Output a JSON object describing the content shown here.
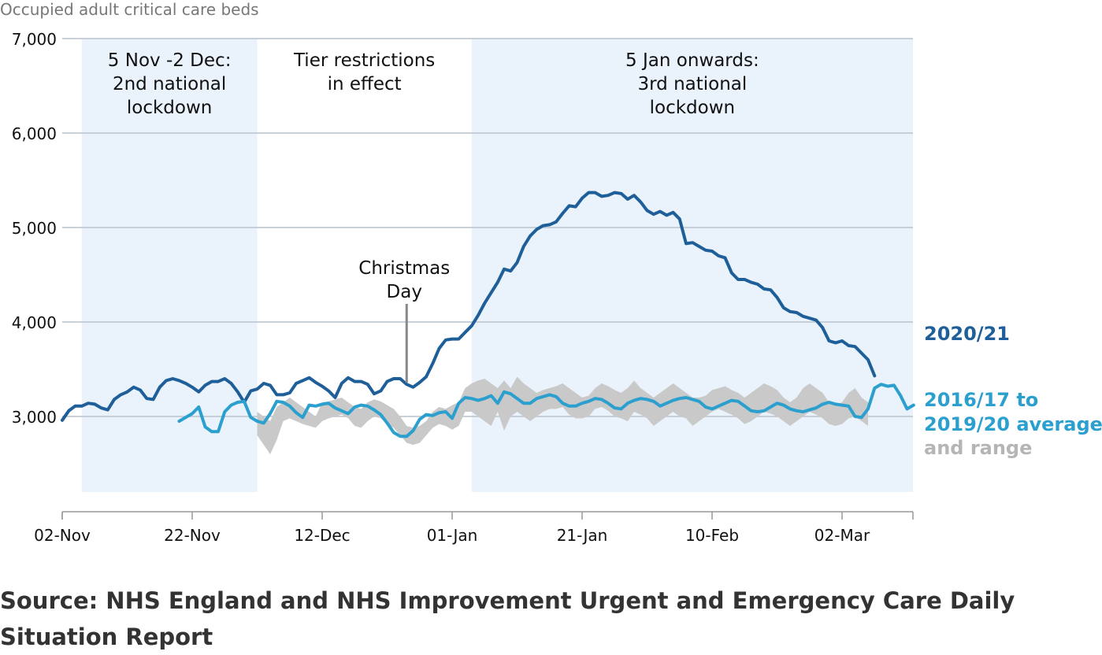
{
  "chart_data": {
    "type": "line",
    "ylabel": "Occupied adult critical care beds",
    "ylim": [
      2200,
      7000
    ],
    "y_ticks": [
      "3,000",
      "4,000",
      "5,000",
      "6,000",
      "7,000"
    ],
    "y_tick_values": [
      3000,
      4000,
      5000,
      6000,
      7000
    ],
    "x_tick_labels": [
      "02-Nov",
      "22-Nov",
      "12-Dec",
      "01-Jan",
      "21-Jan",
      "10-Feb",
      "02-Mar"
    ],
    "x_tick_days": [
      0,
      20,
      40,
      60,
      80,
      100,
      120
    ],
    "x_range_days": [
      0,
      131
    ],
    "grid": true,
    "shaded_periods": [
      {
        "label_lines": [
          "5 Nov -2 Dec:",
          "2nd national",
          "lockdown"
        ],
        "start_day": 3,
        "end_day": 30,
        "shaded": true
      },
      {
        "label_lines": [
          "Tier restrictions",
          "in effect"
        ],
        "start_day": 30,
        "end_day": 63,
        "shaded": false
      },
      {
        "label_lines": [
          "5 Jan onwards:",
          "3rd national",
          "lockdown"
        ],
        "start_day": 63,
        "end_day": 131,
        "shaded": true
      }
    ],
    "annotations": [
      {
        "label_lines": [
          "Christmas",
          "Day"
        ],
        "day": 53
      }
    ],
    "series": [
      {
        "name": "2020/21",
        "color": "#1f5f99",
        "start_day": 0,
        "values": [
          2960,
          3060,
          3110,
          3110,
          3140,
          3130,
          3090,
          3070,
          3180,
          3230,
          3260,
          3310,
          3280,
          3190,
          3180,
          3310,
          3380,
          3400,
          3380,
          3350,
          3310,
          3260,
          3330,
          3370,
          3370,
          3400,
          3350,
          3260,
          3150,
          3270,
          3290,
          3350,
          3330,
          3230,
          3230,
          3250,
          3350,
          3380,
          3410,
          3360,
          3320,
          3270,
          3200,
          3350,
          3410,
          3370,
          3370,
          3340,
          3240,
          3270,
          3370,
          3400,
          3400,
          3340,
          3310,
          3360,
          3420,
          3560,
          3720,
          3810,
          3820,
          3820,
          3890,
          3960,
          4070,
          4200,
          4310,
          4420,
          4560,
          4540,
          4630,
          4800,
          4910,
          4980,
          5020,
          5030,
          5060,
          5150,
          5230,
          5220,
          5310,
          5370,
          5370,
          5330,
          5340,
          5370,
          5360,
          5300,
          5340,
          5270,
          5180,
          5140,
          5170,
          5130,
          5160,
          5090,
          4830,
          4840,
          4800,
          4760,
          4750,
          4700,
          4680,
          4520,
          4450,
          4450,
          4420,
          4400,
          4350,
          4340,
          4260,
          4150,
          4110,
          4100,
          4060,
          4040,
          4020,
          3940,
          3800,
          3780,
          3800,
          3750,
          3740,
          3670,
          3600,
          3430
        ]
      },
      {
        "name": "2016/17 to 2019/20 average",
        "color": "#2b9fce",
        "start_day": 18,
        "values": [
          2950,
          2990,
          3030,
          3100,
          2890,
          2840,
          2840,
          3050,
          3120,
          3150,
          3160,
          2990,
          2950,
          2930,
          3030,
          3160,
          3150,
          3110,
          3040,
          2990,
          3120,
          3110,
          3130,
          3140,
          3090,
          3060,
          3030,
          3100,
          3120,
          3110,
          3070,
          3020,
          2930,
          2830,
          2790,
          2790,
          2850,
          2970,
          3020,
          3010,
          3040,
          3050,
          2980,
          3140,
          3200,
          3190,
          3170,
          3190,
          3220,
          3140,
          3260,
          3240,
          3190,
          3140,
          3140,
          3190,
          3210,
          3230,
          3210,
          3140,
          3110,
          3110,
          3140,
          3160,
          3190,
          3180,
          3140,
          3090,
          3080,
          3140,
          3170,
          3190,
          3180,
          3160,
          3110,
          3140,
          3170,
          3190,
          3200,
          3180,
          3160,
          3100,
          3080,
          3110,
          3140,
          3170,
          3160,
          3110,
          3060,
          3050,
          3060,
          3100,
          3140,
          3120,
          3080,
          3060,
          3050,
          3070,
          3090,
          3130,
          3150,
          3130,
          3120,
          3110,
          3000,
          2990,
          3080,
          3300,
          3340,
          3320,
          3330,
          3220,
          3080,
          3120
        ]
      }
    ],
    "range_band": {
      "name": "and range",
      "color": "#c9c9c9",
      "start_day": 30,
      "upper": [
        3050,
        3000,
        2950,
        3100,
        3150,
        3200,
        3150,
        3100,
        3050,
        3000,
        3150,
        3160,
        3180,
        3200,
        3150,
        3100,
        3080,
        3150,
        3180,
        3160,
        3120,
        3080,
        3000,
        2900,
        2880,
        2900,
        2950,
        3050,
        3100,
        3080,
        3120,
        3150,
        3300,
        3350,
        3380,
        3400,
        3350,
        3300,
        3380,
        3300,
        3420,
        3350,
        3300,
        3250,
        3280,
        3300,
        3320,
        3350,
        3300,
        3250,
        3200,
        3220,
        3300,
        3350,
        3320,
        3280,
        3250,
        3300,
        3380,
        3300,
        3250,
        3200,
        3250,
        3300,
        3350,
        3300,
        3250,
        3200,
        3200,
        3220,
        3280,
        3300,
        3320,
        3280,
        3250,
        3200,
        3250,
        3300,
        3350,
        3320,
        3280,
        3200,
        3150,
        3200,
        3300,
        3350,
        3300,
        3250,
        3150,
        3120,
        3150,
        3250,
        3300,
        3200,
        3150
      ],
      "lower": [
        2800,
        2700,
        2600,
        2750,
        2950,
        2980,
        2950,
        2920,
        2900,
        2880,
        2950,
        2980,
        3000,
        3020,
        2980,
        2900,
        2880,
        2950,
        3000,
        2980,
        2920,
        2880,
        2800,
        2720,
        2700,
        2720,
        2800,
        2880,
        2920,
        2900,
        2860,
        2900,
        3050,
        3050,
        3000,
        2950,
        2900,
        3050,
        2850,
        3000,
        3050,
        3000,
        2950,
        3000,
        3050,
        3080,
        3080,
        3100,
        3020,
        2980,
        2980,
        3000,
        3080,
        3100,
        3060,
        3000,
        2980,
        2950,
        3050,
        3020,
        2980,
        2900,
        2950,
        3000,
        3050,
        3000,
        2980,
        2900,
        2950,
        3000,
        3050,
        3080,
        3050,
        3020,
        2980,
        2920,
        2950,
        3000,
        3050,
        3030,
        3000,
        2950,
        2900,
        2950,
        3000,
        3050,
        3020,
        2980,
        2920,
        2900,
        2920,
        2980,
        3000,
        2950,
        2900
      ]
    }
  },
  "legend": {
    "current": "2020/21",
    "average_line1": "2016/17 to",
    "average_line2": "2019/20 average",
    "range": "and range"
  },
  "source": "Source: NHS England and NHS Improvement Urgent and Emergency Care Daily Situation Report"
}
